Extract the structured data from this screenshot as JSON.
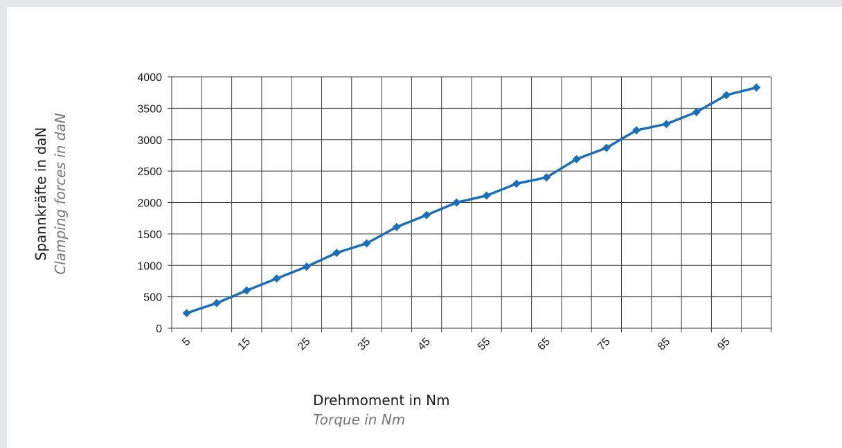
{
  "chart_data": {
    "type": "line",
    "title": "",
    "xlabel": "Drehmoment in Nm",
    "xlabel_sub": "Torque in Nm",
    "ylabel": "Spannkräfte in daN",
    "ylabel_sub": "Clamping forces in daN",
    "ylim": [
      0,
      4000
    ],
    "yticks": [
      0,
      500,
      1000,
      1500,
      2000,
      2500,
      3000,
      3500,
      4000
    ],
    "xtick_labels": [
      "5",
      "15",
      "25",
      "35",
      "45",
      "55",
      "65",
      "75",
      "85",
      "95"
    ],
    "grid": true,
    "legend": "none",
    "series": [
      {
        "color": "#1a6fba",
        "marker": "diamond",
        "x": [
          5,
          10,
          15,
          20,
          25,
          30,
          35,
          40,
          45,
          50,
          55,
          60,
          65,
          70,
          75,
          80,
          85,
          90,
          95,
          100
        ],
        "values": [
          240,
          400,
          600,
          790,
          980,
          1200,
          1350,
          1610,
          1800,
          2000,
          2110,
          2300,
          2400,
          2690,
          2870,
          3150,
          3250,
          3440,
          3710,
          3830
        ]
      }
    ]
  }
}
